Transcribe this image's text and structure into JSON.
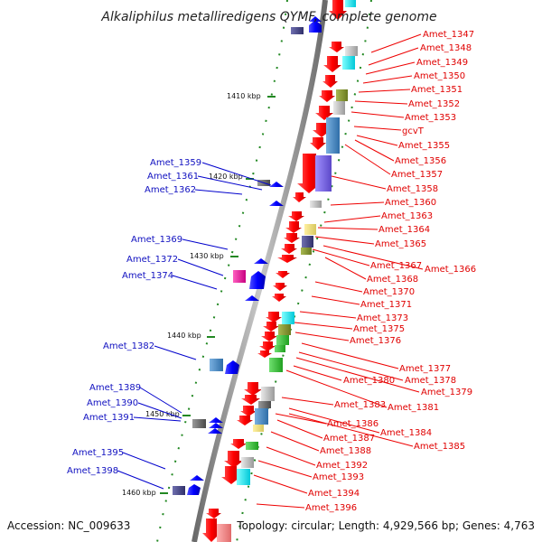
{
  "title": "Alkaliphilus metalliredigens QYMF, complete genome",
  "footer": {
    "accession": "Accession: NC_009633",
    "topology": "Topology: circular; Length: 4,929,566 bp; Genes: 4,763"
  },
  "kbp_ticks": [
    "1410 kbp",
    "1420 kbp",
    "1430 kbp",
    "1440 kbp",
    "1450 kbp",
    "1460 kbp"
  ],
  "right_genes": [
    "Amet_1347",
    "Amet_1348",
    "Amet_1349",
    "Amet_1350",
    "Amet_1351",
    "Amet_1352",
    "Amet_1353",
    "gcvT",
    "Amet_1355",
    "Amet_1356",
    "Amet_1357",
    "Amet_1358",
    "Amet_1360",
    "Amet_1363",
    "Amet_1364",
    "Amet_1365",
    "Amet_1366",
    "Amet_1367",
    "Amet_1368",
    "Amet_1370",
    "Amet_1371",
    "Amet_1373",
    "Amet_1375",
    "Amet_1376",
    "Amet_1377",
    "Amet_1378",
    "Amet_1379",
    "Amet_1380",
    "Amet_1381",
    "Amet_1383",
    "Amet_1384",
    "Amet_1385",
    "Amet_1386",
    "Amet_1387",
    "Amet_1388",
    "Amet_1392",
    "Amet_1393",
    "Amet_1394",
    "Amet_1396"
  ],
  "left_genes": [
    "Amet_1359",
    "Amet_1361",
    "Amet_1362",
    "Amet_1369",
    "Amet_1372",
    "Amet_1374",
    "Amet_1382",
    "Amet_1389",
    "Amet_1390",
    "Amet_1391",
    "Amet_1395",
    "Amet_1398"
  ],
  "colors": {
    "forward_label": "#e00000",
    "reverse_label": "#1010c0",
    "backbone": "#808080"
  }
}
